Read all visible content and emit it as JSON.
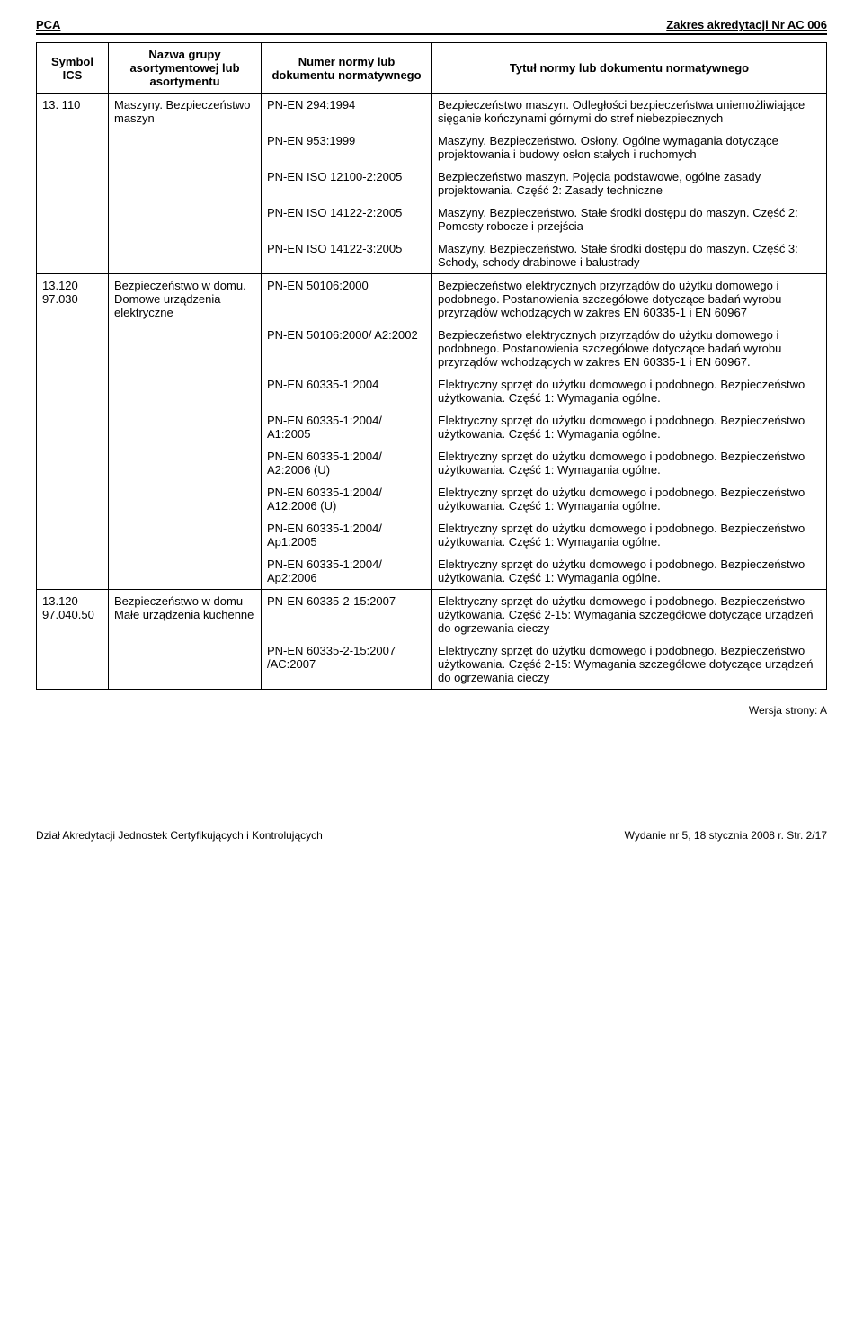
{
  "header": {
    "left": "PCA",
    "right": "Zakres akredytacji Nr AC 006"
  },
  "columns": {
    "c1": "Symbol ICS",
    "c2": "Nazwa grupy asortymentowej lub asortymentu",
    "c3": "Numer normy lub dokumentu normatywnego",
    "c4": "Tytuł normy lub dokumentu normatywnego"
  },
  "groups": [
    {
      "ics": "13. 110",
      "group": "Maszyny. Bezpieczeństwo maszyn",
      "rows": [
        {
          "norm": "PN-EN 294:1994",
          "title": "Bezpieczeństwo maszyn. Odległości bezpieczeństwa uniemożliwiające sięganie kończynami górnymi do stref niebezpiecznych"
        },
        {
          "norm": "PN-EN 953:1999",
          "title": "Maszyny. Bezpieczeństwo. Osłony. Ogólne wymagania dotyczące projektowania i budowy osłon stałych i ruchomych"
        },
        {
          "norm": "PN-EN ISO 12100-2:2005",
          "title": "Bezpieczeństwo maszyn. Pojęcia podstawowe, ogólne zasady projektowania. Część 2: Zasady techniczne"
        },
        {
          "norm": "PN-EN ISO 14122-2:2005",
          "title": "Maszyny. Bezpieczeństwo. Stałe środki dostępu do maszyn. Część 2: Pomosty robocze i przejścia"
        },
        {
          "norm": "PN-EN ISO 14122-3:2005",
          "title": "Maszyny. Bezpieczeństwo. Stałe środki dostępu do maszyn. Część 3: Schody, schody drabinowe i balustrady"
        }
      ]
    },
    {
      "ics": "13.120 97.030",
      "group": "Bezpieczeństwo w domu. Domowe urządzenia elektryczne",
      "rows": [
        {
          "norm": "PN-EN 50106:2000",
          "title": "Bezpieczeństwo elektrycznych przyrządów do użytku domowego i podobnego. Postanowienia szczegółowe dotyczące badań wyrobu przyrządów wchodzących w zakres EN 60335-1 i EN 60967"
        },
        {
          "norm": "PN-EN 50106:2000/ A2:2002",
          "title": "Bezpieczeństwo elektrycznych przyrządów do użytku domowego i podobnego. Postanowienia szczegółowe dotyczące badań wyrobu przyrządów wchodzących w zakres EN 60335-1 i EN 60967."
        },
        {
          "norm": "PN-EN 60335-1:2004",
          "title": "Elektryczny sprzęt do użytku domowego i podobnego. Bezpieczeństwo użytkowania. Część 1: Wymagania ogólne."
        },
        {
          "norm": "PN-EN 60335-1:2004/ A1:2005",
          "title": "Elektryczny sprzęt do użytku domowego i podobnego. Bezpieczeństwo użytkowania. Część 1: Wymagania ogólne."
        },
        {
          "norm": "PN-EN 60335-1:2004/ A2:2006 (U)",
          "title": "Elektryczny sprzęt do użytku domowego i podobnego. Bezpieczeństwo użytkowania. Część 1: Wymagania ogólne."
        },
        {
          "norm": "PN-EN 60335-1:2004/ A12:2006 (U)",
          "title": "Elektryczny sprzęt do użytku domowego i podobnego. Bezpieczeństwo użytkowania. Część 1: Wymagania ogólne."
        },
        {
          "norm": "PN-EN 60335-1:2004/ Ap1:2005",
          "title": "Elektryczny sprzęt do użytku domowego i podobnego. Bezpieczeństwo użytkowania. Część 1: Wymagania ogólne."
        },
        {
          "norm": "PN-EN 60335-1:2004/ Ap2:2006",
          "title": "Elektryczny sprzęt do użytku domowego i podobnego. Bezpieczeństwo użytkowania. Część 1: Wymagania ogólne."
        }
      ]
    },
    {
      "ics": "13.120 97.040.50",
      "group": "Bezpieczeństwo w domu Małe urządzenia kuchenne",
      "rows": [
        {
          "norm": "PN-EN 60335-2-15:2007",
          "title": "Elektryczny sprzęt do użytku domowego i podobnego. Bezpieczeństwo użytkowania. Część 2-15: Wymagania szczegółowe dotyczące urządzeń do ogrzewania cieczy"
        },
        {
          "norm": "PN-EN 60335-2-15:2007 /AC:2007",
          "title": "Elektryczny sprzęt do użytku domowego i podobnego. Bezpieczeństwo użytkowania. Część 2-15: Wymagania szczegółowe dotyczące urządzeń do ogrzewania cieczy"
        }
      ]
    }
  ],
  "version": "Wersja strony: A",
  "footer": {
    "left": "Dział Akredytacji Jednostek Certyfikujących i Kontrolujących",
    "right": "Wydanie nr 5, 18 stycznia 2008 r.   Str. 2/17"
  }
}
